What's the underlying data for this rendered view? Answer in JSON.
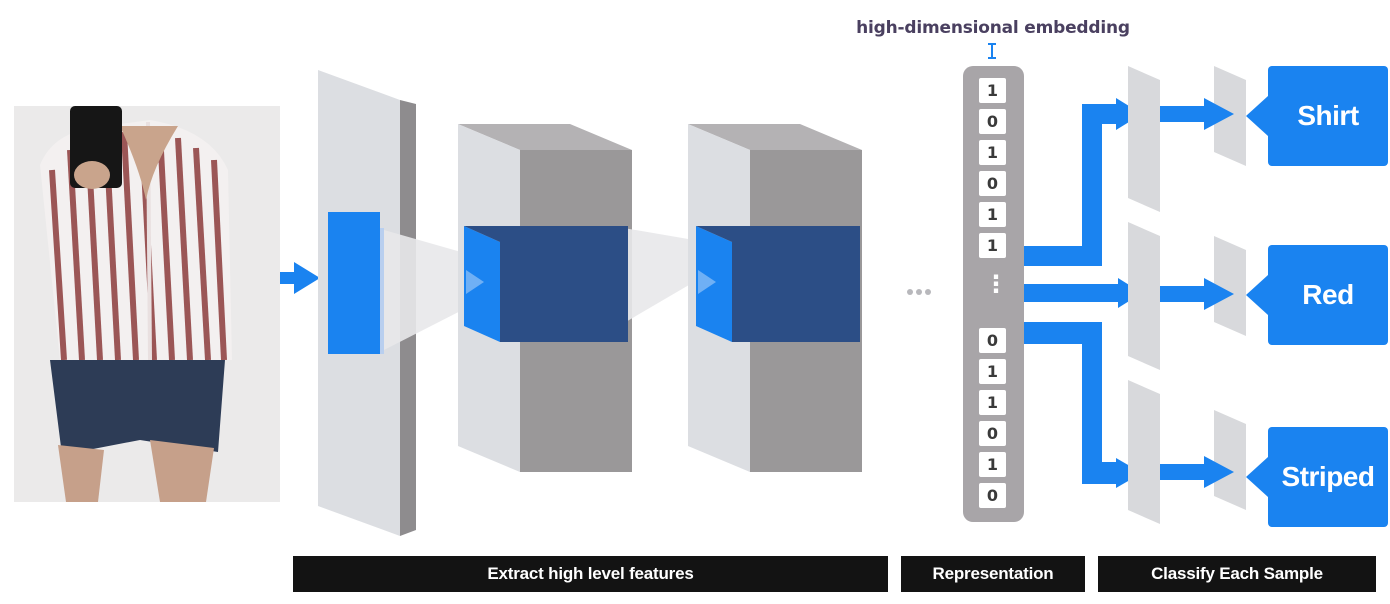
{
  "embedding_label": "high-dimensional embedding",
  "embedding_bits_top": [
    "1",
    "0",
    "1",
    "0",
    "1",
    "1"
  ],
  "embedding_ellipsis": "⋮",
  "embedding_bits_bottom": [
    "0",
    "1",
    "1",
    "0",
    "1",
    "0"
  ],
  "classes": {
    "shirt": "Shirt",
    "red": "Red",
    "striped": "Striped"
  },
  "sections": {
    "features": "Extract high level features",
    "representation": "Representation",
    "classify": "Classify Each Sample"
  },
  "colors": {
    "accent_blue": "#1a83f0",
    "feature_blue": "#2c4e86",
    "bar_black": "#131313"
  }
}
